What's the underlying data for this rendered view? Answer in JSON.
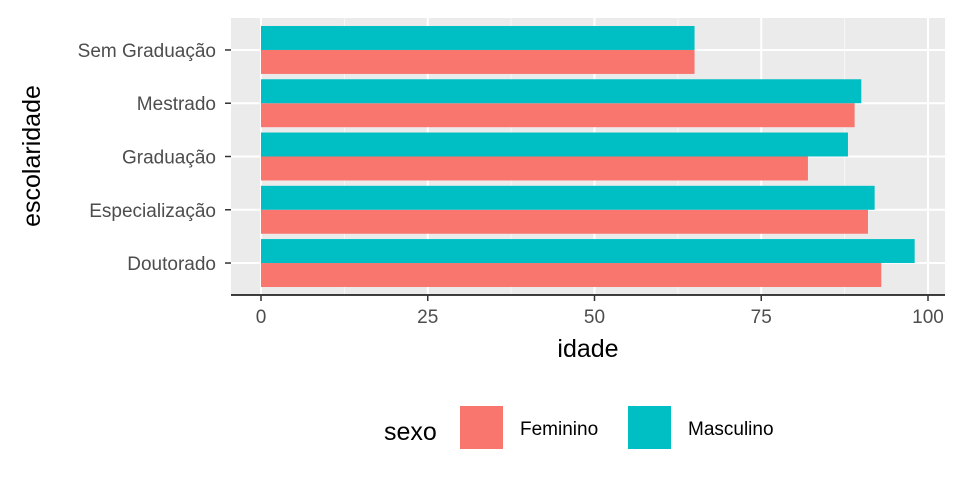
{
  "chart_data": {
    "type": "bar",
    "orientation": "horizontal",
    "categories": [
      "Doutorado",
      "Especialização",
      "Graduação",
      "Mestrado",
      "Sem Graduação"
    ],
    "series": [
      {
        "name": "Feminino",
        "color": "#F8766D",
        "values": [
          93,
          91,
          82,
          89,
          65
        ]
      },
      {
        "name": "Masculino",
        "color": "#00BFC4",
        "values": [
          98,
          92,
          88,
          90,
          65
        ]
      }
    ],
    "xlabel": "idade",
    "ylabel": "escolaridade",
    "xlim": [
      0,
      100
    ],
    "xticks": [
      0,
      25,
      50,
      75,
      100
    ],
    "grid": true,
    "legend": {
      "title": "sexo",
      "placement": "bottom"
    },
    "panel_background": "#EBEBEB"
  }
}
